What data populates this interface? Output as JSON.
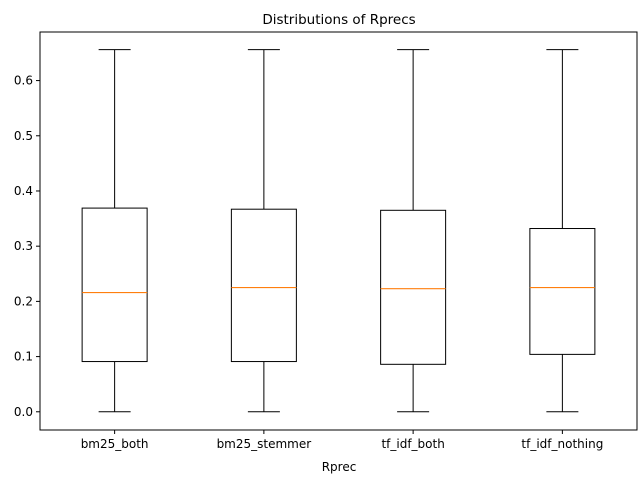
{
  "chart_data": {
    "type": "box",
    "title": "Distributions of Rprecs",
    "xlabel": "Rprec",
    "ylabel": "",
    "ylim": [
      -0.033,
      0.688
    ],
    "yticks": [
      0.0,
      0.1,
      0.2,
      0.3,
      0.4,
      0.5,
      0.6
    ],
    "ytick_labels": [
      "0.0",
      "0.1",
      "0.2",
      "0.3",
      "0.4",
      "0.5",
      "0.6"
    ],
    "categories": [
      "bm25_both",
      "bm25_stemmer",
      "tf_idf_both",
      "tf_idf_nothing"
    ],
    "boxes": [
      {
        "min": 0.0,
        "q1": 0.091,
        "median": 0.216,
        "q3": 0.369,
        "max": 0.656
      },
      {
        "min": 0.0,
        "q1": 0.091,
        "median": 0.225,
        "q3": 0.367,
        "max": 0.656
      },
      {
        "min": 0.0,
        "q1": 0.086,
        "median": 0.223,
        "q3": 0.365,
        "max": 0.656
      },
      {
        "min": 0.0,
        "q1": 0.104,
        "median": 0.225,
        "q3": 0.332,
        "max": 0.656
      }
    ],
    "grid": false,
    "colors": {
      "box": "#000000",
      "median": "#ff7f0e",
      "axis": "#000000"
    }
  }
}
